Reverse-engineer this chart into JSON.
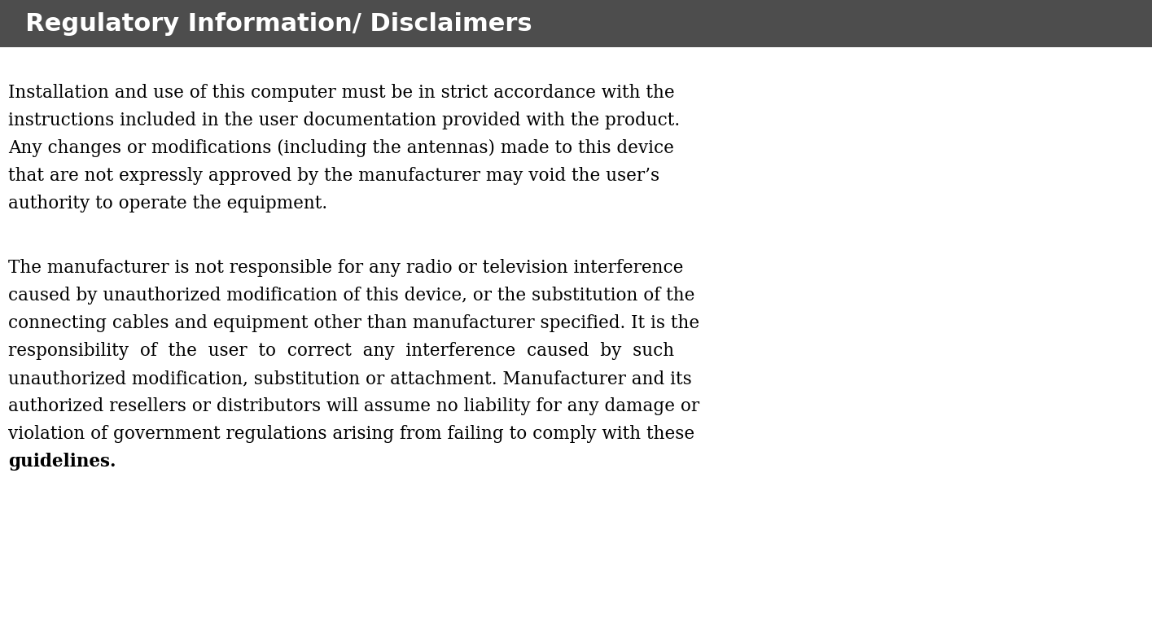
{
  "title": "  Regulatory Information/ Disclaimers",
  "title_bg_color": "#4d4d4d",
  "title_text_color": "#ffffff",
  "title_font_size": 22,
  "body_font_size": 15.5,
  "body_text_color": "#000000",
  "bg_color": "#ffffff",
  "paragraph1_lines": [
    "Installation and use of this computer must be in strict accordance with the",
    "instructions included in the user documentation provided with the product.",
    "Any changes or modifications (including the antennas) made to this device",
    "that are not expressly approved by the manufacturer may void the user’s",
    "authority to operate the equipment."
  ],
  "paragraph2_lines": [
    "The manufacturer is not responsible for any radio or television interference",
    "caused by unauthorized modification of this device, or the substitution of the",
    "connecting cables and equipment other than manufacturer specified. It is the",
    "responsibility  of  the  user  to  correct  any  interference  caused  by  such",
    "unauthorized modification, substitution or attachment. Manufacturer and its",
    "authorized resellers or distributors will assume no liability for any damage or",
    "violation of government regulations arising from failing to comply with these"
  ],
  "paragraph2_last_line": "guidelines.",
  "fig_width": 14.15,
  "fig_height": 7.75
}
